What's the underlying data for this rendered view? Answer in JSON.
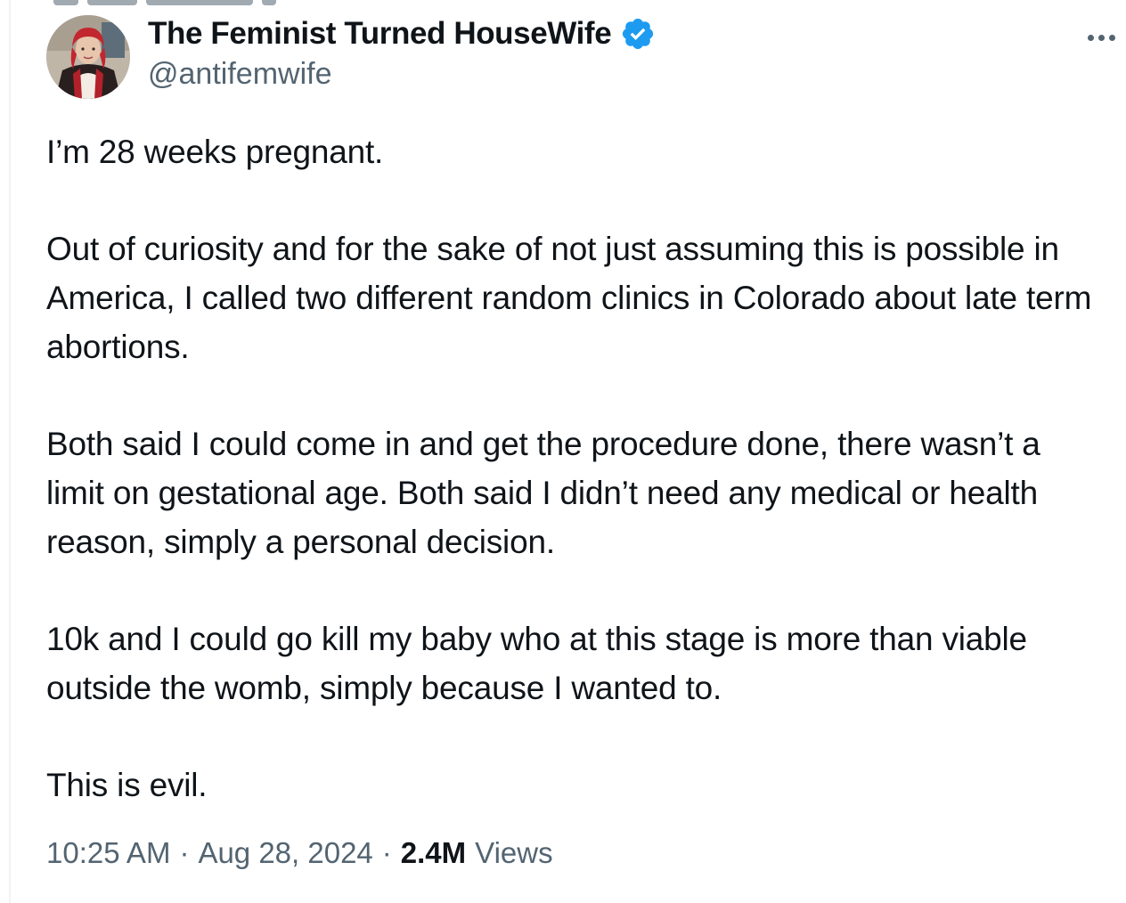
{
  "author": {
    "display_name": "The Feminist Turned HouseWife",
    "handle": "@antifemwife",
    "verified_icon": "verified-badge-icon",
    "avatar_icon": "avatar-photo"
  },
  "more_icon": "more-horizontal-icon",
  "tweet": {
    "paragraphs": [
      "I’m 28 weeks pregnant.",
      "Out of curiosity and for the sake of not just assuming this is possible in America, I called two different random clinics in Colorado about late term abortions.",
      "Both said I could come in and get the procedure done, there wasn’t a limit on gestational age. Both said I didn’t need any medical or health reason, simply a personal decision.",
      "10k and I could go kill my baby who at this stage is more than viable outside the womb, simply because I wanted to.",
      "This is evil."
    ]
  },
  "meta": {
    "time": "10:25 AM",
    "separator": "·",
    "date": "Aug 28, 2024",
    "views_count": "2.4M",
    "views_label": "Views"
  },
  "colors": {
    "text_primary": "#0f1419",
    "text_secondary": "#536471",
    "verified_blue": "#1d9bf0"
  }
}
